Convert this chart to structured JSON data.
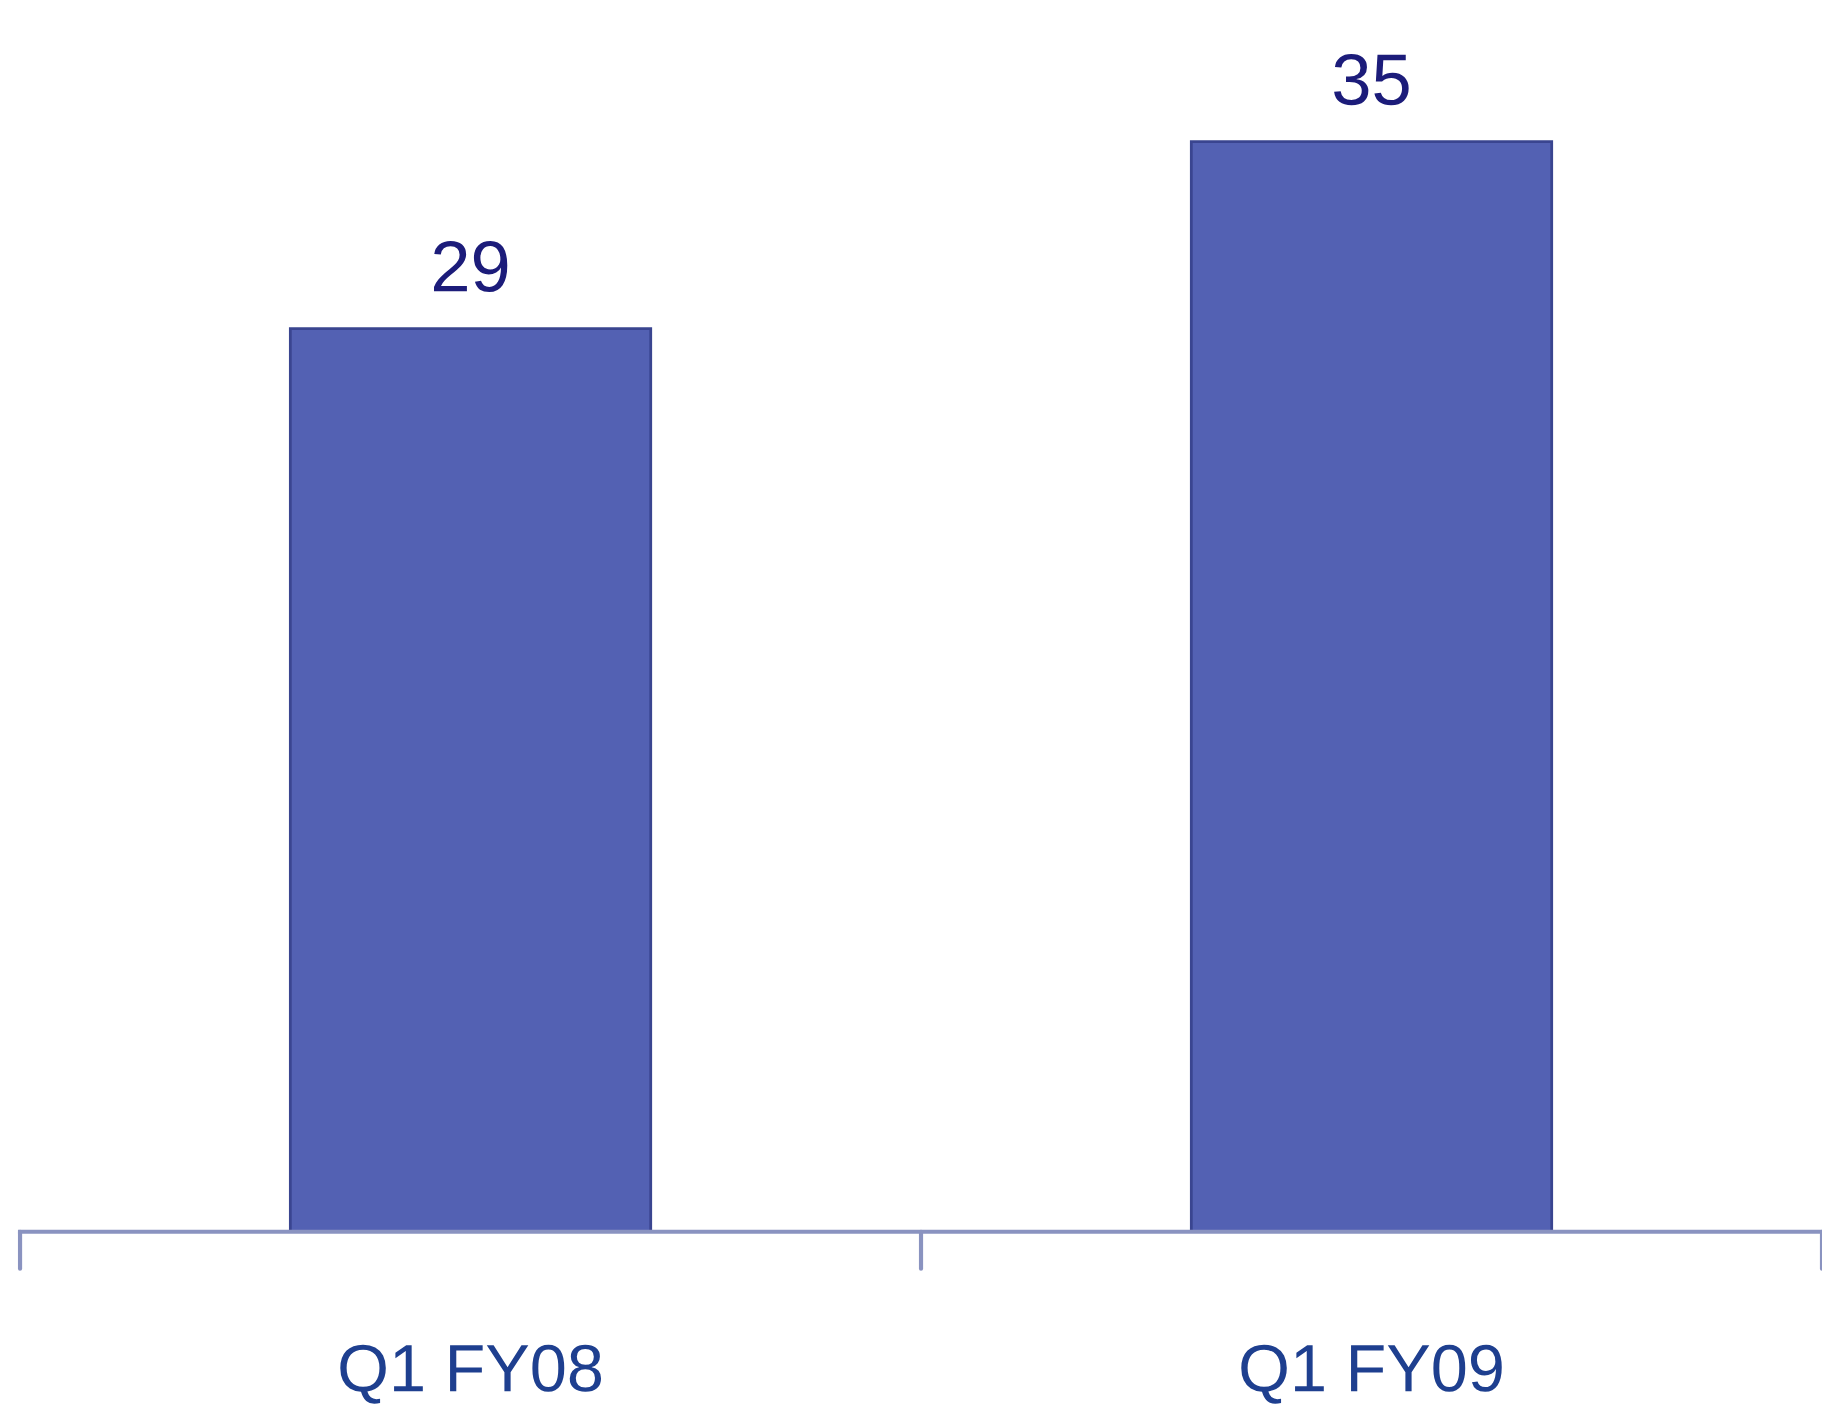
{
  "chart_data": {
    "type": "bar",
    "categories": [
      "Q1 FY08",
      "Q1 FY09"
    ],
    "values": [
      29,
      35
    ],
    "color": "#5361b3",
    "data_labels": true,
    "tick_labels": "x",
    "grid": false,
    "legend": false
  }
}
